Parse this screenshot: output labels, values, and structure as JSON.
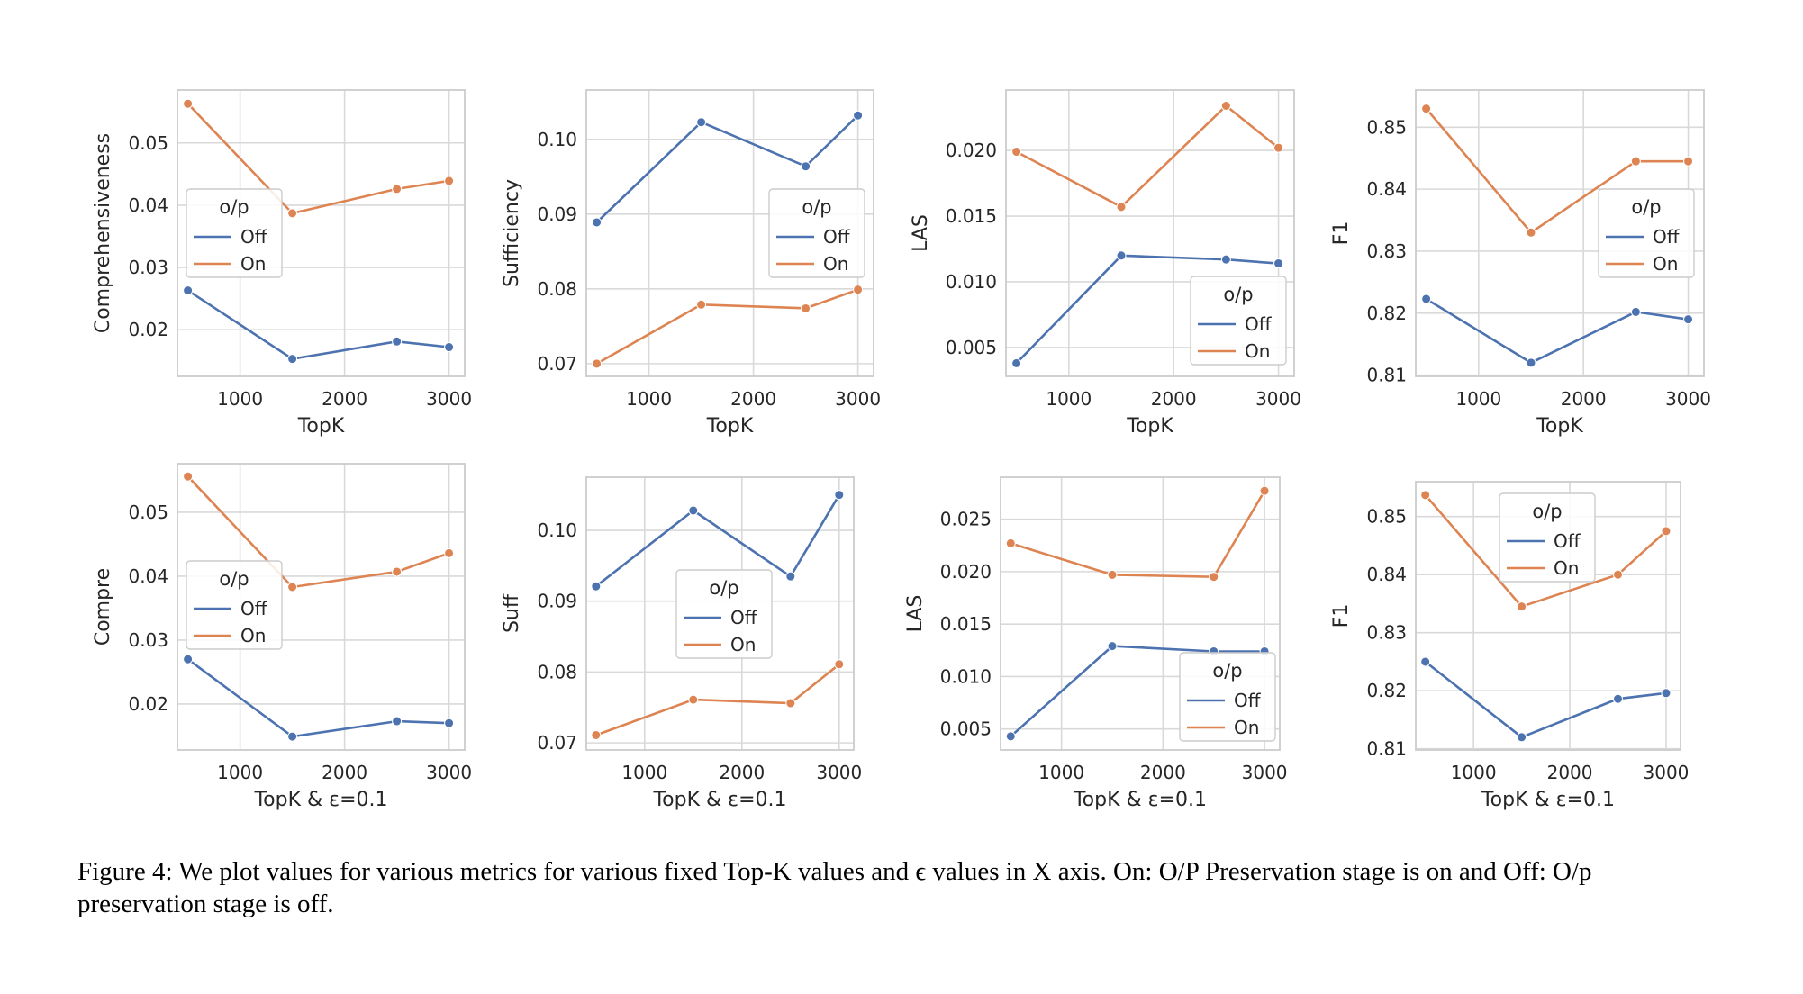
{
  "figure": {
    "caption": "Figure 4: We plot values for various metrics for various fixed Top-K values and ϵ values in X axis. On: O/P Preservation stage is on and Off: O/p preservation stage is off."
  },
  "colors": {
    "off": "#4c72b0",
    "on": "#dd8452",
    "grid": "#d9d9d9",
    "frame": "#cccccc"
  },
  "chart_data": [
    {
      "type": "line",
      "xlabel": "TopK",
      "ylabel": "Comprehensiveness",
      "x": [
        500,
        1500,
        2500,
        3000
      ],
      "xticks": [
        1000,
        2000,
        3000
      ],
      "xlim": [
        400,
        3150
      ],
      "yticks": [
        0.02,
        0.03,
        0.04,
        0.05
      ],
      "ytick_labels": [
        "0.02",
        "0.03",
        "0.04",
        "0.05"
      ],
      "ylim": [
        0.0125,
        0.0585
      ],
      "legend": {
        "title": "o/p",
        "entries": [
          "Off",
          "On"
        ],
        "loc": "center-left"
      },
      "series": [
        {
          "name": "Off",
          "values": [
            0.0263,
            0.0153,
            0.0181,
            0.0172
          ]
        },
        {
          "name": "On",
          "values": [
            0.0563,
            0.0387,
            0.0426,
            0.0439
          ]
        }
      ]
    },
    {
      "type": "line",
      "xlabel": "TopK",
      "ylabel": "Sufficiency",
      "x": [
        500,
        1500,
        2500,
        3000
      ],
      "xticks": [
        1000,
        2000,
        3000
      ],
      "xlim": [
        400,
        3150
      ],
      "yticks": [
        0.07,
        0.08,
        0.09,
        0.1
      ],
      "ytick_labels": [
        "0.07",
        "0.08",
        "0.09",
        "0.10"
      ],
      "ylim": [
        0.0683,
        0.1066
      ],
      "legend": {
        "title": "o/p",
        "entries": [
          "Off",
          "On"
        ],
        "loc": "center-right"
      },
      "series": [
        {
          "name": "Off",
          "values": [
            0.0889,
            0.1023,
            0.0964,
            0.1032
          ]
        },
        {
          "name": "On",
          "values": [
            0.07,
            0.0779,
            0.0774,
            0.0799
          ]
        }
      ]
    },
    {
      "type": "line",
      "xlabel": "TopK",
      "ylabel": "LAS",
      "x": [
        500,
        1500,
        2500,
        3000
      ],
      "xticks": [
        1000,
        2000,
        3000
      ],
      "xlim": [
        400,
        3150
      ],
      "yticks": [
        0.005,
        0.01,
        0.015,
        0.02
      ],
      "ytick_labels": [
        "0.005",
        "0.010",
        "0.015",
        "0.020"
      ],
      "ylim": [
        0.0028,
        0.0246
      ],
      "legend": {
        "title": "o/p",
        "entries": [
          "Off",
          "On"
        ],
        "loc": "lower-right"
      },
      "series": [
        {
          "name": "Off",
          "values": [
            0.0038,
            0.012,
            0.0117,
            0.0114
          ]
        },
        {
          "name": "On",
          "values": [
            0.0199,
            0.0157,
            0.0234,
            0.0202
          ]
        }
      ]
    },
    {
      "type": "line",
      "xlabel": "TopK",
      "ylabel": "F1",
      "x": [
        500,
        1500,
        2500,
        3000
      ],
      "xticks": [
        1000,
        2000,
        3000
      ],
      "xlim": [
        400,
        3150
      ],
      "yticks": [
        0.81,
        0.82,
        0.83,
        0.84,
        0.85
      ],
      "ytick_labels": [
        "0.81",
        "0.82",
        "0.83",
        "0.84",
        "0.85"
      ],
      "ylim": [
        0.8098,
        0.856
      ],
      "legend": {
        "title": "o/p",
        "entries": [
          "Off",
          "On"
        ],
        "loc": "center-right"
      },
      "series": [
        {
          "name": "Off",
          "values": [
            0.8223,
            0.812,
            0.8202,
            0.819
          ]
        },
        {
          "name": "On",
          "values": [
            0.853,
            0.833,
            0.8445,
            0.8445
          ]
        }
      ]
    },
    {
      "type": "line",
      "xlabel": "TopK & ε=0.1",
      "ylabel": "Compre",
      "x": [
        500,
        1500,
        2500,
        3000
      ],
      "xticks": [
        1000,
        2000,
        3000
      ],
      "xlim": [
        400,
        3150
      ],
      "yticks": [
        0.02,
        0.03,
        0.04,
        0.05
      ],
      "ytick_labels": [
        "0.02",
        "0.03",
        "0.04",
        "0.05"
      ],
      "ylim": [
        0.0128,
        0.0576
      ],
      "legend": {
        "title": "o/p",
        "entries": [
          "Off",
          "On"
        ],
        "loc": "center-left"
      },
      "series": [
        {
          "name": "Off",
          "values": [
            0.027,
            0.0149,
            0.0173,
            0.017
          ]
        },
        {
          "name": "On",
          "values": [
            0.0556,
            0.0383,
            0.0407,
            0.0436
          ]
        }
      ]
    },
    {
      "type": "line",
      "xlabel": "TopK & ε=0.1",
      "ylabel": "Suff",
      "x": [
        500,
        1500,
        2500,
        3000
      ],
      "xticks": [
        1000,
        2000,
        3000
      ],
      "xlim": [
        400,
        3150
      ],
      "yticks": [
        0.07,
        0.08,
        0.09,
        0.1
      ],
      "ytick_labels": [
        "0.07",
        "0.08",
        "0.09",
        "0.10"
      ],
      "ylim": [
        0.069,
        0.1075
      ],
      "legend": {
        "title": "o/p",
        "entries": [
          "Off",
          "On"
        ],
        "loc": "center"
      },
      "series": [
        {
          "name": "Off",
          "values": [
            0.0921,
            0.1028,
            0.0935,
            0.105
          ]
        },
        {
          "name": "On",
          "values": [
            0.0711,
            0.0761,
            0.0756,
            0.0811
          ]
        }
      ]
    },
    {
      "type": "line",
      "xlabel": "TopK & ε=0.1",
      "ylabel": "LAS",
      "x": [
        500,
        1500,
        2500,
        3000
      ],
      "xticks": [
        1000,
        2000,
        3000
      ],
      "xlim": [
        400,
        3150
      ],
      "yticks": [
        0.005,
        0.01,
        0.015,
        0.02,
        0.025
      ],
      "ytick_labels": [
        "0.005",
        "0.010",
        "0.015",
        "0.020",
        "0.025"
      ],
      "ylim": [
        0.003,
        0.029
      ],
      "legend": {
        "title": "o/p",
        "entries": [
          "Off",
          "On"
        ],
        "loc": "lower-right"
      },
      "series": [
        {
          "name": "Off",
          "values": [
            0.0043,
            0.0129,
            0.0124,
            0.0124
          ]
        },
        {
          "name": "On",
          "values": [
            0.0227,
            0.0197,
            0.0195,
            0.0277
          ]
        }
      ]
    },
    {
      "type": "line",
      "xlabel": "TopK & ε=0.1",
      "ylabel": "F1",
      "x": [
        500,
        1500,
        2500,
        3000
      ],
      "xticks": [
        1000,
        2000,
        3000
      ],
      "xlim": [
        400,
        3150
      ],
      "yticks": [
        0.81,
        0.82,
        0.83,
        0.84,
        0.85
      ],
      "ytick_labels": [
        "0.81",
        "0.82",
        "0.83",
        "0.84",
        "0.85"
      ],
      "ylim": [
        0.8098,
        0.856
      ],
      "legend": {
        "title": "o/p",
        "entries": [
          "Off",
          "On"
        ],
        "loc": "upper-center"
      },
      "series": [
        {
          "name": "Off",
          "values": [
            0.825,
            0.812,
            0.8186,
            0.8196
          ]
        },
        {
          "name": "On",
          "values": [
            0.8537,
            0.8345,
            0.84,
            0.8475
          ]
        }
      ]
    }
  ]
}
